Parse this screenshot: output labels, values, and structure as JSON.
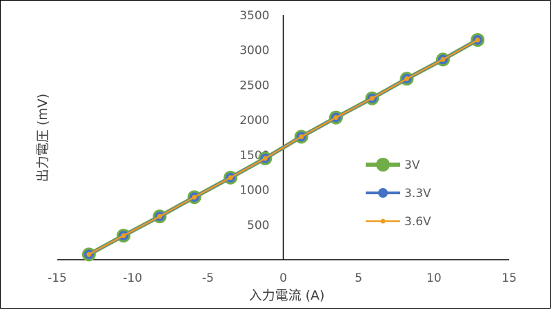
{
  "chart_data": {
    "type": "line",
    "title": "",
    "xlabel": "入力電流 (A)",
    "ylabel": "出力電圧 (mV)",
    "xlim": [
      -15,
      15
    ],
    "ylim": [
      0,
      3500
    ],
    "xticks": [
      "-15",
      "-10",
      "-5",
      "0",
      "5",
      "10",
      "15"
    ],
    "yticks": [
      "500",
      "1000",
      "1500",
      "2000",
      "2500",
      "3000",
      "3500"
    ],
    "x": [
      -12.9,
      -10.6,
      -8.2,
      -5.9,
      -3.5,
      -1.2,
      1.2,
      3.5,
      5.9,
      8.2,
      10.6,
      12.9
    ],
    "series": [
      {
        "name": "3V",
        "color": "#70ad47",
        "values": [
          75,
          345,
          620,
          895,
          1175,
          1450,
          1760,
          2035,
          2310,
          2590,
          2865,
          3145
        ]
      },
      {
        "name": "3.3V",
        "color": "#4472c4",
        "values": [
          75,
          345,
          620,
          895,
          1175,
          1450,
          1760,
          2035,
          2310,
          2590,
          2865,
          3145
        ]
      },
      {
        "name": "3.6V",
        "color": "#ed9d20",
        "values": [
          75,
          345,
          620,
          895,
          1175,
          1450,
          1760,
          2035,
          2310,
          2590,
          2865,
          3145
        ]
      }
    ],
    "grid": false,
    "legend": "right"
  }
}
